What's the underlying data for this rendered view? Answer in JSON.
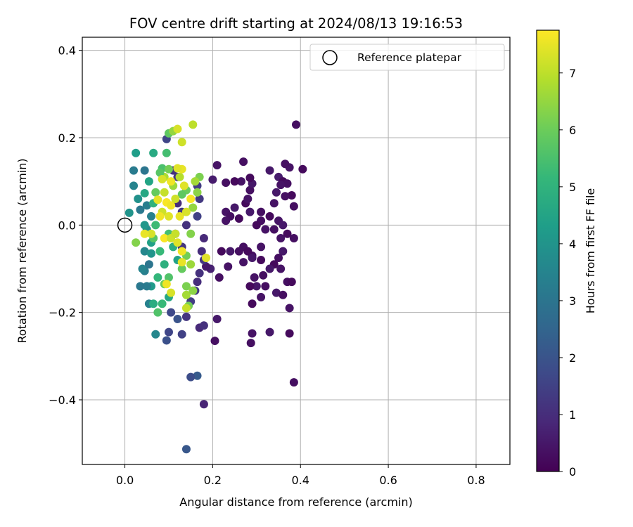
{
  "chart_data": {
    "type": "scatter",
    "title": "FOV centre drift starting at 2024/08/13 19:16:53",
    "xlabel": "Angular distance from reference (arcmin)",
    "ylabel": "Rotation from reference (arcmin)",
    "colorbar_label": "Hours from first FF file",
    "xlim": [
      -0.097,
      0.877
    ],
    "ylim": [
      -0.548,
      0.43
    ],
    "clim": [
      0,
      7.75
    ],
    "colormap": "viridis",
    "grid": true,
    "legend_position": "top-right",
    "x_ticks": [
      0.0,
      0.2,
      0.4,
      0.6,
      0.8
    ],
    "x_tick_labels": [
      "0.0",
      "0.2",
      "0.4",
      "0.6",
      "0.8"
    ],
    "y_ticks": [
      0.4,
      0.2,
      0.0,
      -0.2,
      -0.4
    ],
    "y_tick_labels": [
      "0.4",
      "0.2",
      "0.0",
      "−0.2",
      "−0.4"
    ],
    "colorbar_ticks": [
      0,
      1,
      2,
      3,
      4,
      5,
      6,
      7
    ],
    "colorbar_tick_labels": [
      "0",
      "1",
      "2",
      "3",
      "4",
      "5",
      "6",
      "7"
    ],
    "reference": {
      "name": "Reference platepar",
      "x": 0.0,
      "y": 0.0
    },
    "points": [
      {
        "x": 0.39,
        "y": 0.23,
        "h": 0.3
      },
      {
        "x": 0.405,
        "y": 0.128,
        "h": 0.2
      },
      {
        "x": 0.375,
        "y": 0.132,
        "h": 0.4
      },
      {
        "x": 0.365,
        "y": 0.14,
        "h": 0.3
      },
      {
        "x": 0.33,
        "y": 0.125,
        "h": 0.5
      },
      {
        "x": 0.35,
        "y": 0.11,
        "h": 0.6
      },
      {
        "x": 0.36,
        "y": 0.1,
        "h": 0.2
      },
      {
        "x": 0.37,
        "y": 0.095,
        "h": 0.3
      },
      {
        "x": 0.355,
        "y": 0.092,
        "h": 0.4
      },
      {
        "x": 0.345,
        "y": 0.075,
        "h": 0.5
      },
      {
        "x": 0.38,
        "y": 0.068,
        "h": 0.2
      },
      {
        "x": 0.365,
        "y": 0.066,
        "h": 0.3
      },
      {
        "x": 0.34,
        "y": 0.05,
        "h": 0.4
      },
      {
        "x": 0.385,
        "y": 0.043,
        "h": 0.3
      },
      {
        "x": 0.33,
        "y": 0.02,
        "h": 0.2
      },
      {
        "x": 0.35,
        "y": 0.01,
        "h": 0.4
      },
      {
        "x": 0.36,
        "y": 0.0,
        "h": 0.5
      },
      {
        "x": 0.34,
        "y": -0.01,
        "h": 0.3
      },
      {
        "x": 0.37,
        "y": -0.02,
        "h": 0.2
      },
      {
        "x": 0.355,
        "y": -0.03,
        "h": 0.4
      },
      {
        "x": 0.385,
        "y": -0.03,
        "h": 0.3
      },
      {
        "x": 0.36,
        "y": -0.06,
        "h": 0.5
      },
      {
        "x": 0.35,
        "y": -0.075,
        "h": 0.3
      },
      {
        "x": 0.34,
        "y": -0.09,
        "h": 0.2
      },
      {
        "x": 0.355,
        "y": -0.1,
        "h": 0.4
      },
      {
        "x": 0.37,
        "y": -0.13,
        "h": 0.3
      },
      {
        "x": 0.38,
        "y": -0.13,
        "h": 0.2
      },
      {
        "x": 0.345,
        "y": -0.155,
        "h": 0.5
      },
      {
        "x": 0.36,
        "y": -0.16,
        "h": 0.3
      },
      {
        "x": 0.375,
        "y": -0.19,
        "h": 0.4
      },
      {
        "x": 0.375,
        "y": -0.248,
        "h": 0.2
      },
      {
        "x": 0.385,
        "y": -0.36,
        "h": 0.3
      },
      {
        "x": 0.33,
        "y": -0.245,
        "h": 0.5
      },
      {
        "x": 0.29,
        "y": -0.248,
        "h": 0.4
      },
      {
        "x": 0.287,
        "y": -0.27,
        "h": 0.3
      },
      {
        "x": 0.29,
        "y": -0.18,
        "h": 0.2
      },
      {
        "x": 0.31,
        "y": -0.165,
        "h": 0.4
      },
      {
        "x": 0.3,
        "y": -0.14,
        "h": 0.5
      },
      {
        "x": 0.32,
        "y": -0.14,
        "h": 0.3
      },
      {
        "x": 0.285,
        "y": -0.14,
        "h": 0.2
      },
      {
        "x": 0.295,
        "y": -0.12,
        "h": 0.4
      },
      {
        "x": 0.315,
        "y": -0.115,
        "h": 0.3
      },
      {
        "x": 0.33,
        "y": -0.1,
        "h": 0.5
      },
      {
        "x": 0.31,
        "y": -0.08,
        "h": 0.2
      },
      {
        "x": 0.29,
        "y": -0.07,
        "h": 0.3
      },
      {
        "x": 0.31,
        "y": -0.05,
        "h": 0.4
      },
      {
        "x": 0.27,
        "y": -0.05,
        "h": 0.3
      },
      {
        "x": 0.28,
        "y": -0.06,
        "h": 0.2
      },
      {
        "x": 0.29,
        "y": -0.075,
        "h": 0.5
      },
      {
        "x": 0.27,
        "y": -0.085,
        "h": 0.4
      },
      {
        "x": 0.31,
        "y": 0.01,
        "h": 0.3
      },
      {
        "x": 0.3,
        "y": 0.0,
        "h": 0.2
      },
      {
        "x": 0.32,
        "y": -0.01,
        "h": 0.4
      },
      {
        "x": 0.285,
        "y": 0.03,
        "h": 0.5
      },
      {
        "x": 0.31,
        "y": 0.03,
        "h": 0.3
      },
      {
        "x": 0.275,
        "y": 0.05,
        "h": 0.2
      },
      {
        "x": 0.28,
        "y": 0.06,
        "h": 0.4
      },
      {
        "x": 0.285,
        "y": 0.08,
        "h": 0.3
      },
      {
        "x": 0.29,
        "y": 0.095,
        "h": 0.5
      },
      {
        "x": 0.285,
        "y": 0.108,
        "h": 0.2
      },
      {
        "x": 0.27,
        "y": 0.145,
        "h": 0.3
      },
      {
        "x": 0.265,
        "y": 0.1,
        "h": 0.4
      },
      {
        "x": 0.25,
        "y": 0.1,
        "h": 0.2
      },
      {
        "x": 0.23,
        "y": 0.097,
        "h": 0.3
      },
      {
        "x": 0.25,
        "y": 0.04,
        "h": 0.5
      },
      {
        "x": 0.23,
        "y": 0.03,
        "h": 0.4
      },
      {
        "x": 0.24,
        "y": 0.02,
        "h": 0.3
      },
      {
        "x": 0.26,
        "y": 0.015,
        "h": 0.2
      },
      {
        "x": 0.23,
        "y": 0.01,
        "h": 0.4
      },
      {
        "x": 0.26,
        "y": -0.06,
        "h": 0.3
      },
      {
        "x": 0.24,
        "y": -0.06,
        "h": 0.5
      },
      {
        "x": 0.22,
        "y": -0.06,
        "h": 0.2
      },
      {
        "x": 0.235,
        "y": -0.095,
        "h": 0.4
      },
      {
        "x": 0.215,
        "y": -0.12,
        "h": 0.3
      },
      {
        "x": 0.21,
        "y": -0.215,
        "h": 0.5
      },
      {
        "x": 0.205,
        "y": -0.265,
        "h": 0.3
      },
      {
        "x": 0.21,
        "y": 0.137,
        "h": 0.4
      },
      {
        "x": 0.2,
        "y": 0.104,
        "h": 0.6
      },
      {
        "x": 0.195,
        "y": -0.1,
        "h": 0.7
      },
      {
        "x": 0.185,
        "y": -0.095,
        "h": 0.5
      },
      {
        "x": 0.18,
        "y": -0.41,
        "h": 0.8
      },
      {
        "x": 0.17,
        "y": -0.235,
        "h": 0.9
      },
      {
        "x": 0.18,
        "y": -0.23,
        "h": 1.1
      },
      {
        "x": 0.165,
        "y": -0.345,
        "h": 2.2
      },
      {
        "x": 0.15,
        "y": -0.348,
        "h": 1.8
      },
      {
        "x": 0.14,
        "y": -0.513,
        "h": 2.1
      },
      {
        "x": 0.13,
        "y": -0.25,
        "h": 1.5
      },
      {
        "x": 0.1,
        "y": -0.245,
        "h": 1.6
      },
      {
        "x": 0.095,
        "y": -0.264,
        "h": 1.9
      },
      {
        "x": 0.105,
        "y": -0.2,
        "h": 1.7
      },
      {
        "x": 0.12,
        "y": -0.215,
        "h": 2.0
      },
      {
        "x": 0.14,
        "y": -0.21,
        "h": 1.2
      },
      {
        "x": 0.15,
        "y": -0.175,
        "h": 1.4
      },
      {
        "x": 0.16,
        "y": -0.15,
        "h": 1.3
      },
      {
        "x": 0.165,
        "y": -0.13,
        "h": 1.0
      },
      {
        "x": 0.17,
        "y": -0.11,
        "h": 1.1
      },
      {
        "x": 0.18,
        "y": -0.08,
        "h": 1.2
      },
      {
        "x": 0.175,
        "y": -0.06,
        "h": 1.0
      },
      {
        "x": 0.18,
        "y": -0.03,
        "h": 0.9
      },
      {
        "x": 0.165,
        "y": 0.02,
        "h": 1.5
      },
      {
        "x": 0.17,
        "y": 0.06,
        "h": 1.3
      },
      {
        "x": 0.165,
        "y": 0.09,
        "h": 1.4
      },
      {
        "x": 0.095,
        "y": 0.197,
        "h": 1.6
      },
      {
        "x": 0.11,
        "y": 0.125,
        "h": 1.1
      },
      {
        "x": 0.12,
        "y": 0.11,
        "h": 1.2
      },
      {
        "x": 0.12,
        "y": 0.05,
        "h": 1.0
      },
      {
        "x": 0.13,
        "y": 0.03,
        "h": 1.3
      },
      {
        "x": 0.14,
        "y": 0.0,
        "h": 1.1
      },
      {
        "x": 0.115,
        "y": -0.02,
        "h": 1.4
      },
      {
        "x": 0.13,
        "y": -0.05,
        "h": 1.2
      },
      {
        "x": 0.06,
        "y": -0.14,
        "h": 4.2
      },
      {
        "x": 0.05,
        "y": -0.14,
        "h": 3.2
      },
      {
        "x": 0.055,
        "y": -0.18,
        "h": 3.4
      },
      {
        "x": 0.07,
        "y": -0.25,
        "h": 3.6
      },
      {
        "x": 0.035,
        "y": -0.14,
        "h": 3.1
      },
      {
        "x": 0.045,
        "y": -0.105,
        "h": 3.3
      },
      {
        "x": 0.04,
        "y": -0.1,
        "h": 3.5
      },
      {
        "x": 0.055,
        "y": -0.09,
        "h": 3.0
      },
      {
        "x": 0.045,
        "y": -0.06,
        "h": 3.6
      },
      {
        "x": 0.06,
        "y": -0.065,
        "h": 4.0
      },
      {
        "x": 0.06,
        "y": -0.04,
        "h": 4.4
      },
      {
        "x": 0.05,
        "y": -0.01,
        "h": 3.8
      },
      {
        "x": 0.045,
        "y": 0.0,
        "h": 4.1
      },
      {
        "x": 0.06,
        "y": 0.02,
        "h": 3.4
      },
      {
        "x": 0.035,
        "y": 0.035,
        "h": 3.1
      },
      {
        "x": 0.05,
        "y": 0.045,
        "h": 3.3
      },
      {
        "x": 0.03,
        "y": 0.06,
        "h": 3.9
      },
      {
        "x": 0.045,
        "y": 0.073,
        "h": 4.6
      },
      {
        "x": 0.02,
        "y": 0.09,
        "h": 3.5
      },
      {
        "x": 0.02,
        "y": 0.125,
        "h": 3.2
      },
      {
        "x": 0.045,
        "y": 0.125,
        "h": 3.0
      },
      {
        "x": 0.025,
        "y": 0.165,
        "h": 4.3
      },
      {
        "x": 0.055,
        "y": 0.1,
        "h": 4.5
      },
      {
        "x": 0.01,
        "y": 0.028,
        "h": 4.0
      },
      {
        "x": 0.025,
        "y": -0.04,
        "h": 6.3
      },
      {
        "x": 0.065,
        "y": 0.165,
        "h": 4.7
      },
      {
        "x": 0.095,
        "y": 0.165,
        "h": 5.4
      },
      {
        "x": 0.065,
        "y": -0.18,
        "h": 4.8
      },
      {
        "x": 0.075,
        "y": -0.2,
        "h": 5.6
      },
      {
        "x": 0.085,
        "y": -0.18,
        "h": 5.2
      },
      {
        "x": 0.1,
        "y": -0.165,
        "h": 4.6
      },
      {
        "x": 0.1,
        "y": 0.21,
        "h": 5.8
      },
      {
        "x": 0.11,
        "y": 0.215,
        "h": 6.5
      },
      {
        "x": 0.085,
        "y": 0.13,
        "h": 5.5
      },
      {
        "x": 0.07,
        "y": 0.075,
        "h": 5.9
      },
      {
        "x": 0.065,
        "y": 0.05,
        "h": 5.0
      },
      {
        "x": 0.07,
        "y": 0.0,
        "h": 5.3
      },
      {
        "x": 0.065,
        "y": -0.03,
        "h": 5.7
      },
      {
        "x": 0.08,
        "y": -0.06,
        "h": 5.2
      },
      {
        "x": 0.09,
        "y": -0.09,
        "h": 4.9
      },
      {
        "x": 0.075,
        "y": -0.12,
        "h": 5.1
      },
      {
        "x": 0.1,
        "y": -0.12,
        "h": 5.6
      },
      {
        "x": 0.09,
        "y": -0.135,
        "h": 6.0
      },
      {
        "x": 0.12,
        "y": -0.08,
        "h": 4.4
      },
      {
        "x": 0.11,
        "y": -0.05,
        "h": 4.8
      },
      {
        "x": 0.1,
        "y": -0.02,
        "h": 5.4
      },
      {
        "x": 0.13,
        "y": -0.1,
        "h": 5.9
      },
      {
        "x": 0.14,
        "y": -0.14,
        "h": 6.2
      },
      {
        "x": 0.145,
        "y": -0.185,
        "h": 6.1
      },
      {
        "x": 0.14,
        "y": -0.16,
        "h": 6.7
      },
      {
        "x": 0.155,
        "y": -0.15,
        "h": 6.4
      },
      {
        "x": 0.15,
        "y": -0.09,
        "h": 6.6
      },
      {
        "x": 0.14,
        "y": -0.07,
        "h": 6.1
      },
      {
        "x": 0.15,
        "y": -0.02,
        "h": 6.3
      },
      {
        "x": 0.155,
        "y": 0.04,
        "h": 6.5
      },
      {
        "x": 0.165,
        "y": 0.075,
        "h": 6.4
      },
      {
        "x": 0.17,
        "y": 0.11,
        "h": 6.2
      },
      {
        "x": 0.14,
        "y": 0.08,
        "h": 6.0
      },
      {
        "x": 0.16,
        "y": 0.1,
        "h": 6.7
      },
      {
        "x": 0.13,
        "y": 0.07,
        "h": 5.8
      },
      {
        "x": 0.125,
        "y": 0.11,
        "h": 6.9
      },
      {
        "x": 0.11,
        "y": 0.09,
        "h": 6.6
      },
      {
        "x": 0.09,
        "y": 0.11,
        "h": 6.8
      },
      {
        "x": 0.08,
        "y": 0.12,
        "h": 5.7
      },
      {
        "x": 0.1,
        "y": 0.128,
        "h": 6.1
      },
      {
        "x": 0.155,
        "y": 0.23,
        "h": 7.0
      },
      {
        "x": 0.13,
        "y": 0.19,
        "h": 7.2
      },
      {
        "x": 0.12,
        "y": 0.22,
        "h": 7.3
      },
      {
        "x": 0.13,
        "y": 0.128,
        "h": 7.5
      },
      {
        "x": 0.12,
        "y": 0.13,
        "h": 7.4
      },
      {
        "x": 0.105,
        "y": 0.1,
        "h": 7.6
      },
      {
        "x": 0.085,
        "y": 0.105,
        "h": 7.3
      },
      {
        "x": 0.09,
        "y": 0.075,
        "h": 7.1
      },
      {
        "x": 0.075,
        "y": 0.058,
        "h": 7.5
      },
      {
        "x": 0.095,
        "y": 0.052,
        "h": 7.7
      },
      {
        "x": 0.105,
        "y": 0.045,
        "h": 7.6
      },
      {
        "x": 0.085,
        "y": 0.03,
        "h": 7.2
      },
      {
        "x": 0.1,
        "y": 0.02,
        "h": 7.4
      },
      {
        "x": 0.08,
        "y": 0.02,
        "h": 7.6
      },
      {
        "x": 0.06,
        "y": -0.02,
        "h": 7.3
      },
      {
        "x": 0.045,
        "y": -0.02,
        "h": 7.5
      },
      {
        "x": 0.09,
        "y": -0.03,
        "h": 7.7
      },
      {
        "x": 0.105,
        "y": -0.03,
        "h": 7.2
      },
      {
        "x": 0.12,
        "y": -0.04,
        "h": 7.4
      },
      {
        "x": 0.13,
        "y": -0.06,
        "h": 7.6
      },
      {
        "x": 0.115,
        "y": -0.02,
        "h": 7.1
      },
      {
        "x": 0.125,
        "y": 0.02,
        "h": 7.5
      },
      {
        "x": 0.14,
        "y": 0.03,
        "h": 7.3
      },
      {
        "x": 0.15,
        "y": 0.06,
        "h": 7.7
      },
      {
        "x": 0.135,
        "y": 0.09,
        "h": 7.4
      },
      {
        "x": 0.115,
        "y": 0.06,
        "h": 7.2
      },
      {
        "x": 0.13,
        "y": -0.085,
        "h": 7.5
      },
      {
        "x": 0.095,
        "y": -0.135,
        "h": 7.6
      },
      {
        "x": 0.105,
        "y": -0.155,
        "h": 7.3
      },
      {
        "x": 0.14,
        "y": -0.19,
        "h": 7.1
      },
      {
        "x": 0.185,
        "y": -0.075,
        "h": 7.4
      }
    ]
  }
}
